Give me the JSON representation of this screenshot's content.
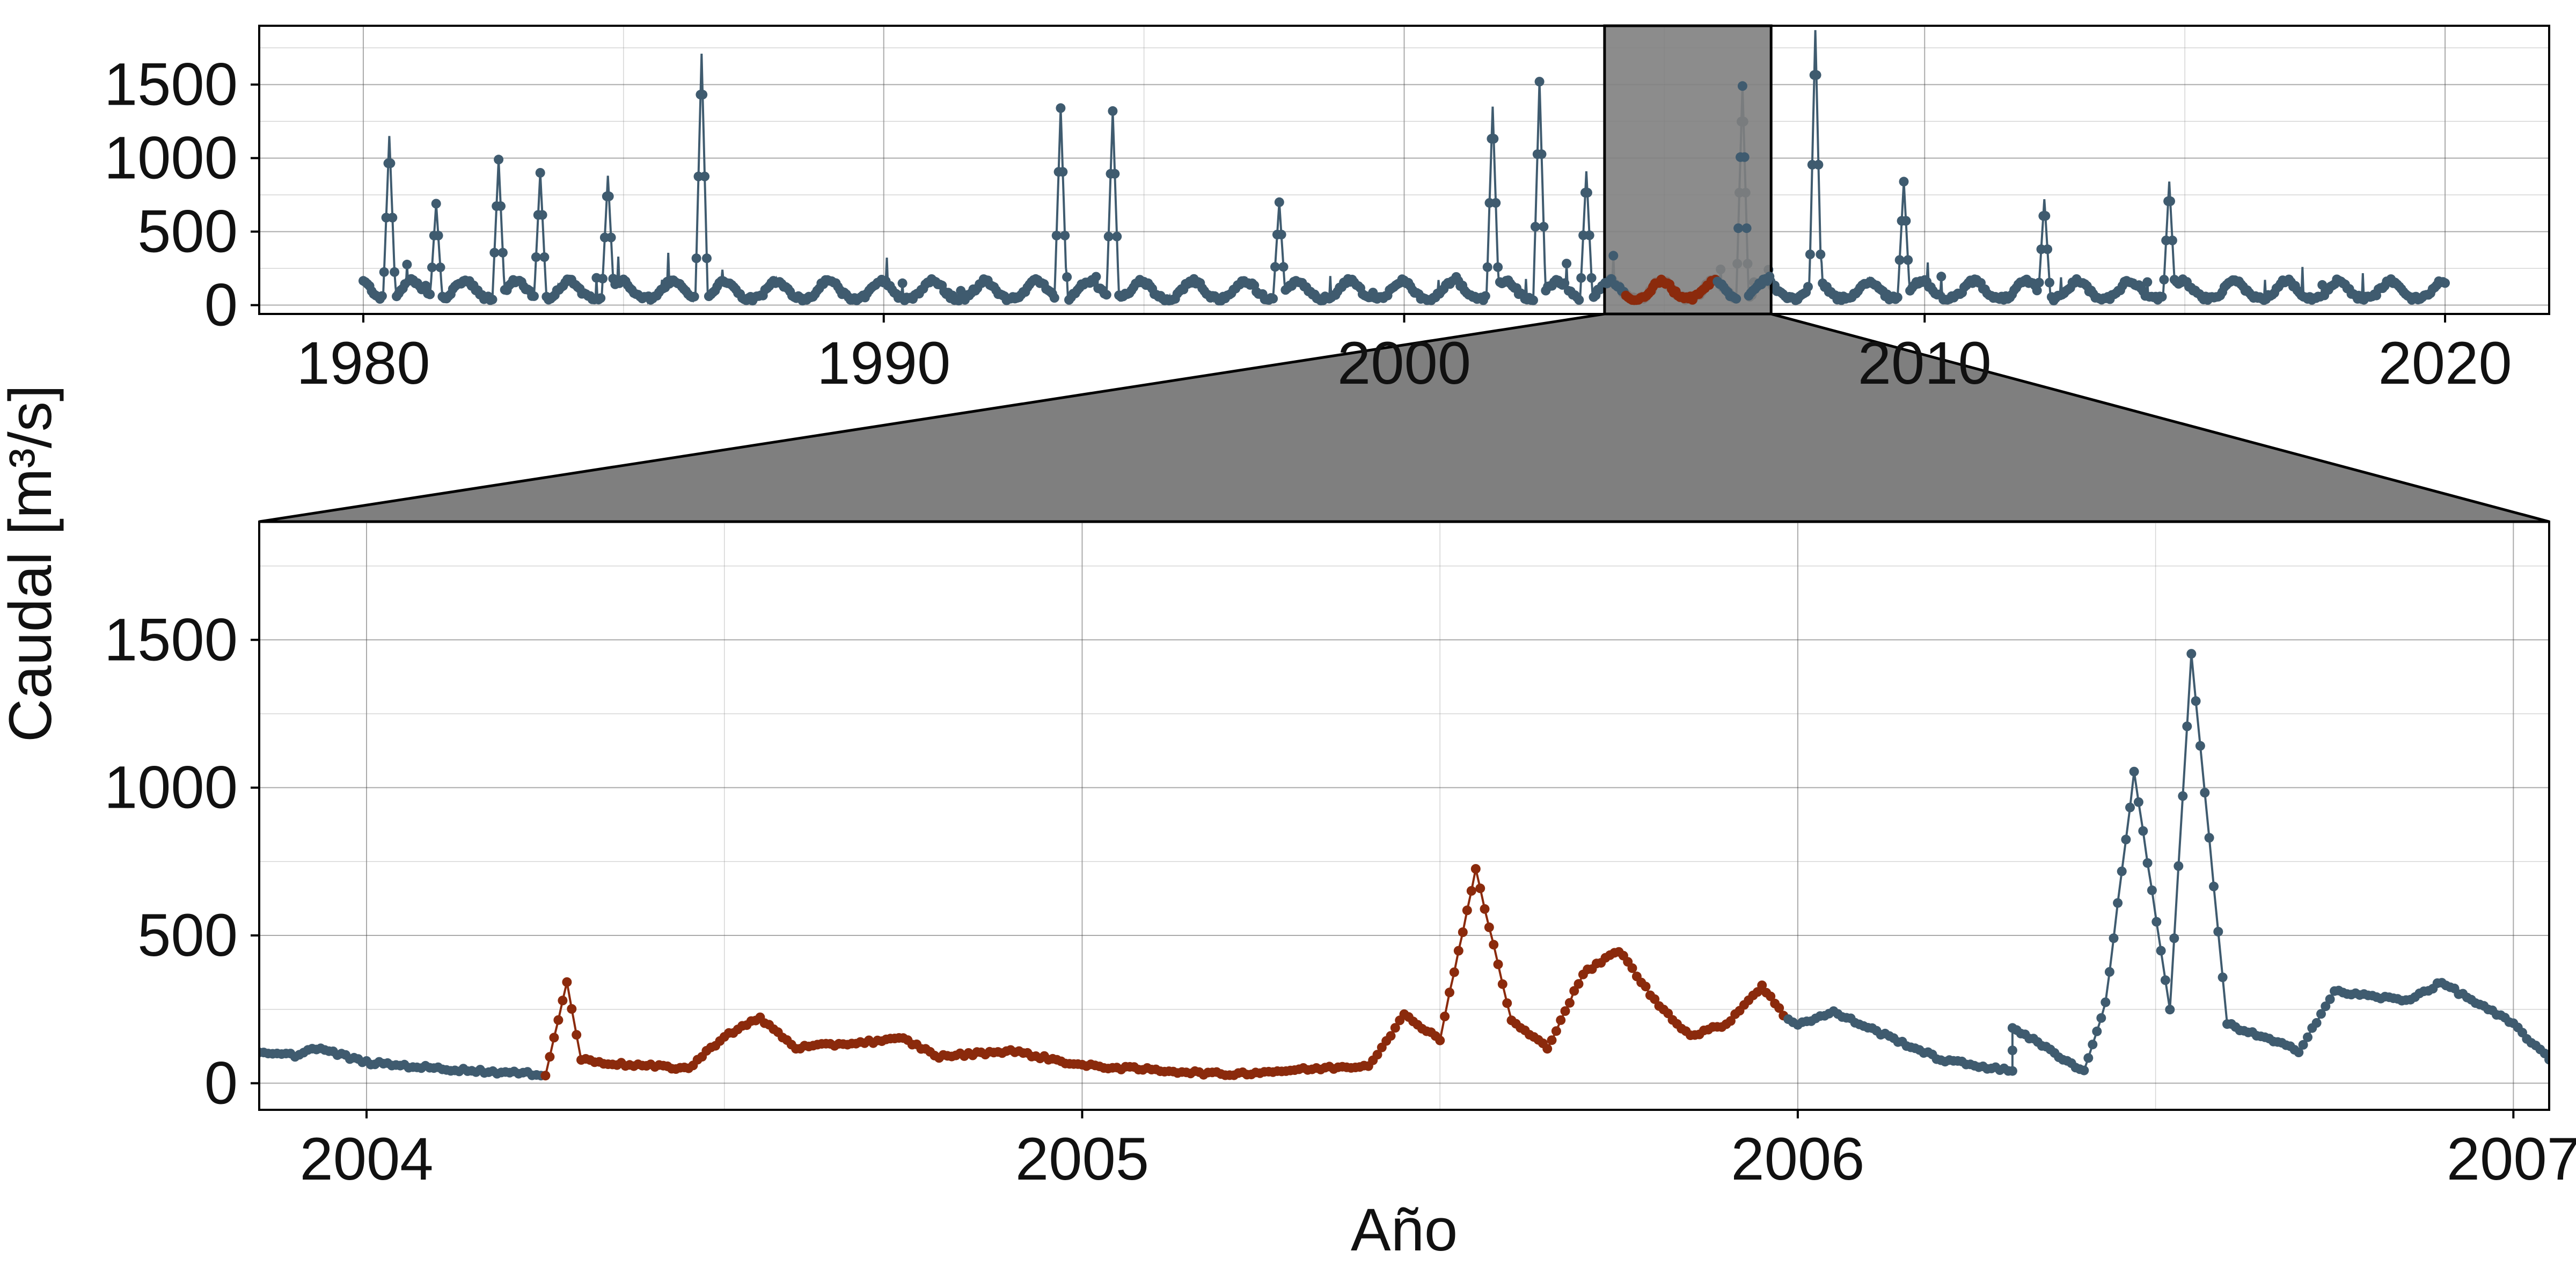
{
  "chart_data": {
    "type": "line",
    "ylabel": "Caudal [m³/s]",
    "xlabel": "Año",
    "colors": {
      "observed": "#3f5b6f",
      "highlight": "#8b2a0c",
      "zoom_shade": "#7f7f7f"
    },
    "series_note": "daily discharge; points rendered as line with markers",
    "panels": [
      {
        "name": "overview",
        "xlim": [
          1978.0,
          2022.0
        ],
        "ylim": [
          -60,
          1900
        ],
        "xticks": [
          1980,
          1990,
          2000,
          2010,
          2020
        ],
        "xtick_labels": [
          "1980",
          "1990",
          "2000",
          "2010",
          "2020"
        ],
        "yticks": [
          0,
          500,
          1000,
          1500
        ],
        "ytick_labels": [
          "0",
          "500",
          "1000",
          "1500"
        ],
        "zoom_window": [
          2003.85,
          2007.05
        ]
      },
      {
        "name": "detail",
        "xlim": [
          2003.85,
          2007.05
        ],
        "ylim": [
          -90,
          1900
        ],
        "xticks": [
          2004,
          2005,
          2006,
          2007
        ],
        "xtick_labels": [
          "2004",
          "2005",
          "2006",
          "2007"
        ],
        "yticks": [
          0,
          500,
          1000,
          1500
        ],
        "ytick_labels": [
          "0",
          "500",
          "1000",
          "1500"
        ]
      }
    ],
    "highlight_periods": [
      [
        2004.25,
        2005.98
      ]
    ],
    "overview_peaks": [
      {
        "x": 1980.5,
        "y": 1110
      },
      {
        "x": 1981.4,
        "y": 650
      },
      {
        "x": 1982.6,
        "y": 950
      },
      {
        "x": 1983.4,
        "y": 860
      },
      {
        "x": 1984.7,
        "y": 840
      },
      {
        "x": 1986.5,
        "y": 1670
      },
      {
        "x": 1993.4,
        "y": 1300
      },
      {
        "x": 1994.4,
        "y": 1280
      },
      {
        "x": 1997.6,
        "y": 660
      },
      {
        "x": 2001.7,
        "y": 1310
      },
      {
        "x": 2002.6,
        "y": 1480
      },
      {
        "x": 2003.5,
        "y": 870
      },
      {
        "x": 2006.5,
        "y": 1450
      },
      {
        "x": 2007.9,
        "y": 1830
      },
      {
        "x": 2009.6,
        "y": 800
      },
      {
        "x": 2012.3,
        "y": 680
      },
      {
        "x": 2014.7,
        "y": 800
      }
    ],
    "detail_points": [
      {
        "x": 2003.85,
        "y": 100
      },
      {
        "x": 2003.9,
        "y": 95
      },
      {
        "x": 2003.93,
        "y": 120
      },
      {
        "x": 2004.0,
        "y": 70
      },
      {
        "x": 2004.1,
        "y": 50
      },
      {
        "x": 2004.2,
        "y": 35
      },
      {
        "x": 2004.25,
        "y": 30
      },
      {
        "x": 2004.28,
        "y": 340
      },
      {
        "x": 2004.3,
        "y": 80
      },
      {
        "x": 2004.35,
        "y": 65
      },
      {
        "x": 2004.45,
        "y": 50
      },
      {
        "x": 2004.5,
        "y": 160
      },
      {
        "x": 2004.55,
        "y": 220
      },
      {
        "x": 2004.6,
        "y": 120
      },
      {
        "x": 2004.75,
        "y": 150
      },
      {
        "x": 2004.8,
        "y": 90
      },
      {
        "x": 2004.9,
        "y": 110
      },
      {
        "x": 2005.0,
        "y": 60
      },
      {
        "x": 2005.2,
        "y": 30
      },
      {
        "x": 2005.4,
        "y": 60
      },
      {
        "x": 2005.45,
        "y": 230
      },
      {
        "x": 2005.5,
        "y": 150
      },
      {
        "x": 2005.52,
        "y": 380
      },
      {
        "x": 2005.55,
        "y": 720
      },
      {
        "x": 2005.6,
        "y": 210
      },
      {
        "x": 2005.65,
        "y": 120
      },
      {
        "x": 2005.7,
        "y": 370
      },
      {
        "x": 2005.75,
        "y": 450
      },
      {
        "x": 2005.8,
        "y": 280
      },
      {
        "x": 2005.85,
        "y": 160
      },
      {
        "x": 2005.9,
        "y": 200
      },
      {
        "x": 2005.95,
        "y": 330
      },
      {
        "x": 2005.98,
        "y": 230
      },
      {
        "x": 2006.0,
        "y": 200
      },
      {
        "x": 2006.05,
        "y": 240
      },
      {
        "x": 2006.2,
        "y": 80
      },
      {
        "x": 2006.3,
        "y": 40
      },
      {
        "x": 2006.3,
        "y": 190
      },
      {
        "x": 2006.4,
        "y": 40
      },
      {
        "x": 2006.43,
        "y": 270
      },
      {
        "x": 2006.47,
        "y": 1050
      },
      {
        "x": 2006.52,
        "y": 250
      },
      {
        "x": 2006.55,
        "y": 1450
      },
      {
        "x": 2006.6,
        "y": 200
      },
      {
        "x": 2006.7,
        "y": 110
      },
      {
        "x": 2006.75,
        "y": 310
      },
      {
        "x": 2006.85,
        "y": 280
      },
      {
        "x": 2006.9,
        "y": 340
      },
      {
        "x": 2007.0,
        "y": 200
      },
      {
        "x": 2007.05,
        "y": 80
      }
    ]
  }
}
